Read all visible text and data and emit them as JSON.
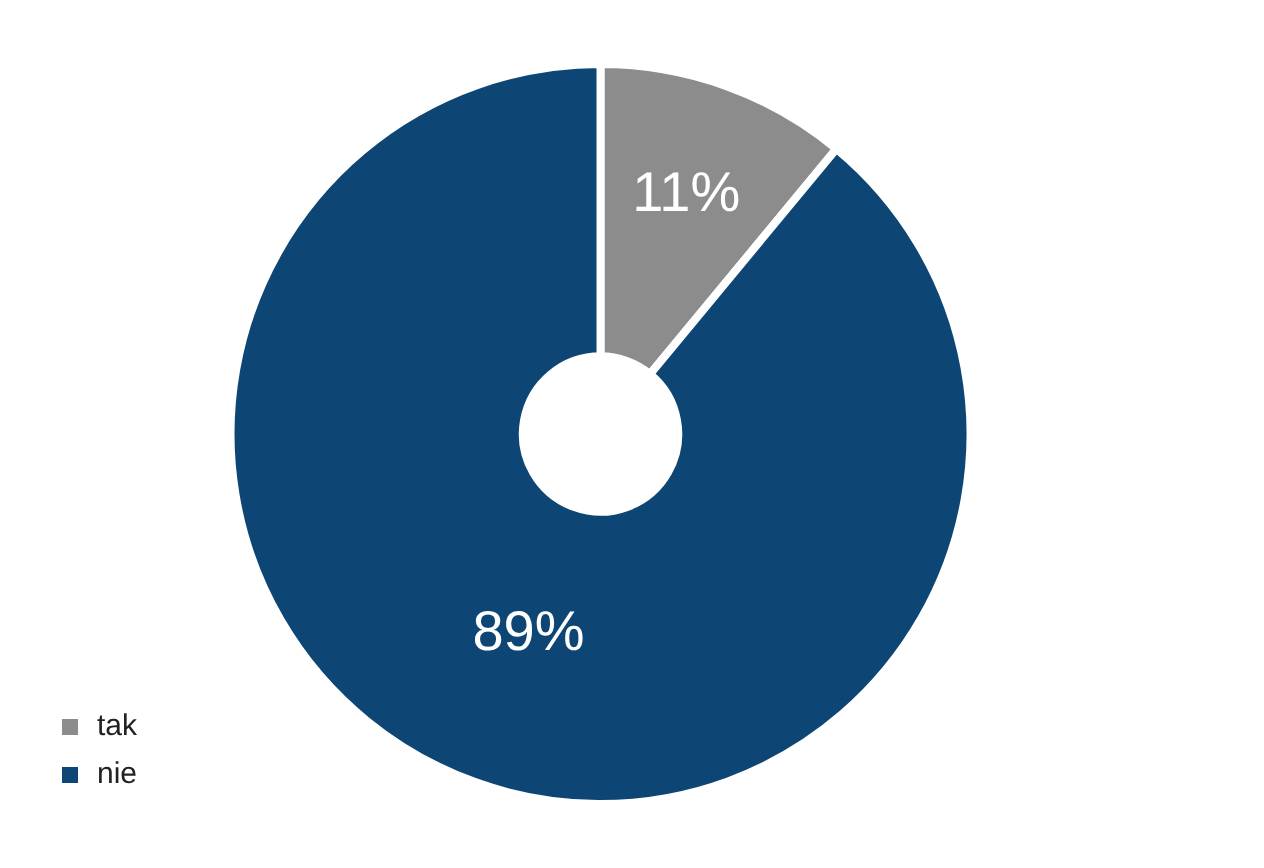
{
  "chart_data": {
    "type": "donut",
    "categories": [
      "tak",
      "nie"
    ],
    "values": [
      11,
      89
    ],
    "colors": [
      "#8c8c8c",
      "#0d4675"
    ],
    "value_labels": [
      "11%",
      "89%"
    ],
    "legend": "bottom left"
  }
}
